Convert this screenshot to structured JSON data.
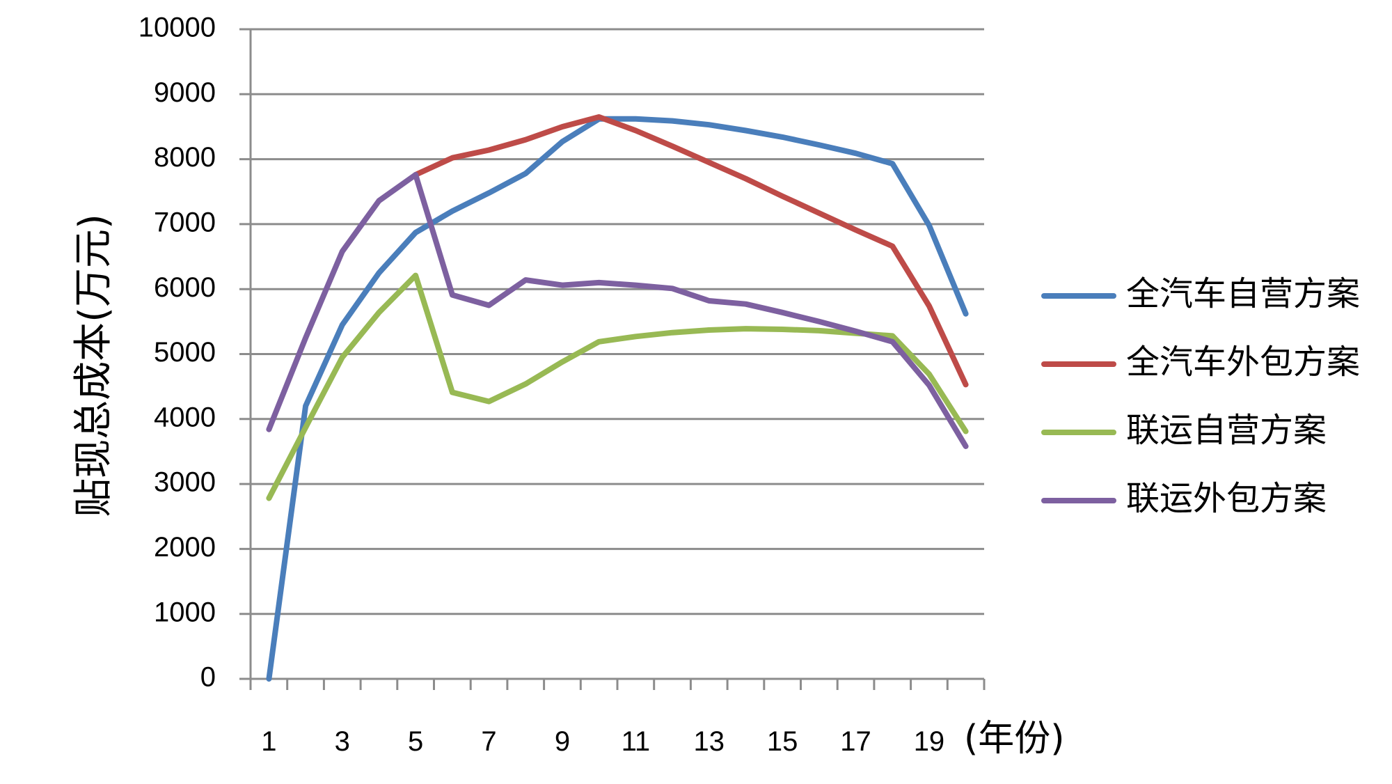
{
  "chart_data": {
    "type": "line",
    "ylabel": "贴现总成本(万元)",
    "x_unit_label": "(年份)",
    "ylim": [
      0,
      10000
    ],
    "yticks": [
      0,
      1000,
      2000,
      3000,
      4000,
      5000,
      6000,
      7000,
      8000,
      9000,
      10000
    ],
    "x": [
      1,
      2,
      3,
      4,
      5,
      6,
      7,
      8,
      9,
      10,
      11,
      12,
      13,
      14,
      15,
      16,
      17,
      18,
      19,
      20
    ],
    "xtick_labels": [
      1,
      3,
      5,
      7,
      9,
      11,
      13,
      15,
      17,
      19
    ],
    "grid": true,
    "legend_position": "right",
    "series": [
      {
        "name": "全汽车自营方案",
        "color": "#4a7ebb",
        "values": [
          0,
          4200,
          5450,
          6250,
          6870,
          7200,
          7480,
          7780,
          8270,
          8620,
          8620,
          8590,
          8530,
          8440,
          8340,
          8220,
          8090,
          7930,
          6980,
          5620
        ]
      },
      {
        "name": "全汽车外包方案",
        "color": "#be4b48",
        "values": [
          null,
          null,
          null,
          null,
          7760,
          8020,
          8140,
          8300,
          8500,
          8650,
          8440,
          8200,
          7950,
          7700,
          7430,
          7170,
          6910,
          6660,
          5740,
          4530
        ]
      },
      {
        "name": "联运自营方案",
        "color": "#98b954",
        "values": [
          2780,
          3870,
          4950,
          5640,
          6210,
          4410,
          4270,
          4540,
          4880,
          5190,
          5270,
          5330,
          5370,
          5390,
          5380,
          5360,
          5320,
          5280,
          4690,
          3810
        ]
      },
      {
        "name": "联运外包方案",
        "color": "#7d60a0",
        "values": [
          3840,
          5250,
          6580,
          7360,
          7760,
          5910,
          5750,
          6140,
          6060,
          6100,
          6060,
          6010,
          5820,
          5770,
          5640,
          5500,
          5350,
          5190,
          4520,
          3580
        ]
      }
    ]
  }
}
